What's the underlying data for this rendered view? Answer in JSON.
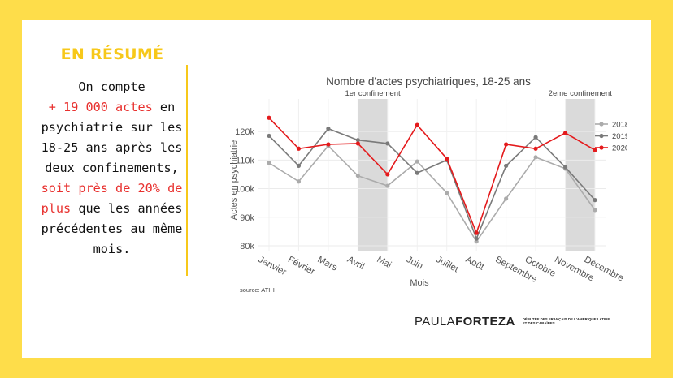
{
  "summary": {
    "title": "EN RÉSUMÉ",
    "line1": "On compte",
    "highlight1": "+ 19 000 actes",
    "line2_suffix": " en",
    "line3": "psychiatrie sur les",
    "line4": "18-25 ans après les",
    "line5": "deux confinements,",
    "highlight2a": "soit près de 20% de",
    "highlight2b": "plus",
    "line6_suffix": " que les années",
    "line7": "précédentes au même",
    "line8": "mois."
  },
  "footer": {
    "name_first": "PAULA",
    "name_last": "FORTEZA",
    "subtitle_line1": "DÉPUTÉE DES FRANÇAIS DE L'AMÉRIQUE LATINE",
    "subtitle_line2": "ET DES CARAÏBES"
  },
  "colors": {
    "background": "#fedd4a",
    "accent_yellow": "#f7c81a",
    "highlight_red": "#e8302e",
    "series_2018": "#ababab",
    "series_2019": "#7a7a7a",
    "series_2020": "#e41a1c"
  },
  "chart_data": {
    "type": "line",
    "title": "Nombre d'actes psychiatriques, 18-25 ans",
    "xlabel": "Mois",
    "ylabel": "Actes en psychiatrie",
    "source": "source: ATIH",
    "categories": [
      "Janvier",
      "Février",
      "Mars",
      "Avril",
      "Mai",
      "Juin",
      "Juillet",
      "Août",
      "Septembre",
      "Octobre",
      "Novembre",
      "Décembre"
    ],
    "ylim": [
      78000,
      128000
    ],
    "yticks": [
      80000,
      90000,
      100000,
      110000,
      120000
    ],
    "ytick_labels": [
      "80k",
      "90k",
      "100k",
      "110k",
      "120k"
    ],
    "grid": true,
    "legend_position": "right",
    "series": [
      {
        "name": "2018",
        "values": [
          109000,
          102500,
          115000,
          104500,
          101000,
          109500,
          98500,
          81500,
          96500,
          111000,
          107000,
          92500
        ]
      },
      {
        "name": "2019",
        "values": [
          118500,
          108000,
          121000,
          117000,
          115800,
          105500,
          110000,
          82500,
          108000,
          118000,
          107500,
          96000
        ]
      },
      {
        "name": "2020",
        "values": [
          124800,
          114000,
          115500,
          115800,
          105000,
          122300,
          110500,
          84500,
          115500,
          114000,
          119500,
          113500
        ]
      }
    ],
    "shaded_periods": [
      {
        "label": "1er confinement",
        "from": "Avril",
        "to": "Mai"
      },
      {
        "label": "2eme confinement",
        "from": "Novembre",
        "to": "Décembre"
      }
    ]
  }
}
